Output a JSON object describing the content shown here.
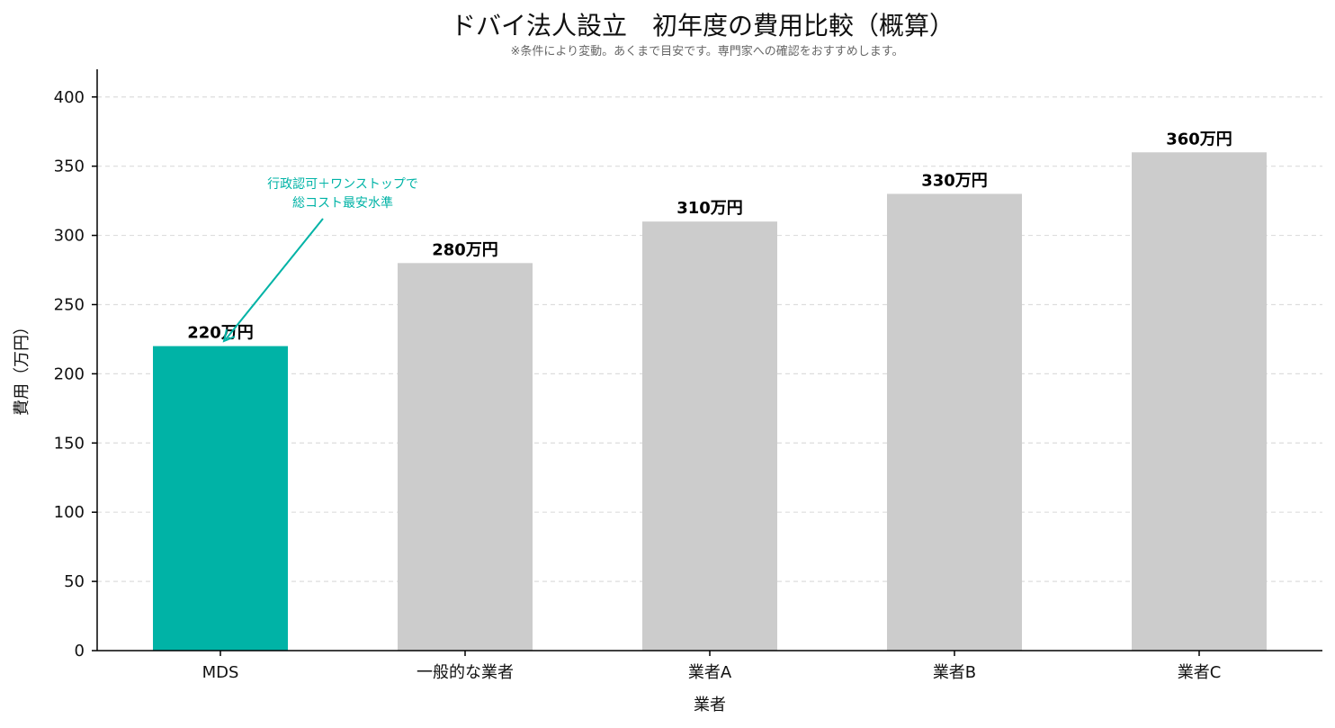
{
  "chart_data": {
    "type": "bar",
    "title": "ドバイ法人設立　初年度の費用比較（概算）",
    "subtitle": "※条件により変動。あくまで目安です。専門家への確認をおすすめします。",
    "xlabel": "業者",
    "ylabel": "費用（万円）",
    "categories": [
      "MDS",
      "一般的な業者",
      "業者A",
      "業者B",
      "業者C"
    ],
    "values": [
      220,
      280,
      310,
      330,
      360
    ],
    "value_labels": [
      "220万円",
      "280万円",
      "310万円",
      "330万円",
      "360万円"
    ],
    "colors": [
      "#00b3a6",
      "#cccccc",
      "#cccccc",
      "#cccccc",
      "#cccccc"
    ],
    "ylim": [
      0,
      420
    ],
    "yticks": [
      0,
      50,
      100,
      150,
      200,
      250,
      300,
      350,
      400
    ],
    "grid": true,
    "annotation": {
      "lines": [
        "行政認可＋ワンストップで",
        "総コスト最安水準"
      ],
      "target_category": "MDS",
      "color": "#00b3a6"
    }
  }
}
